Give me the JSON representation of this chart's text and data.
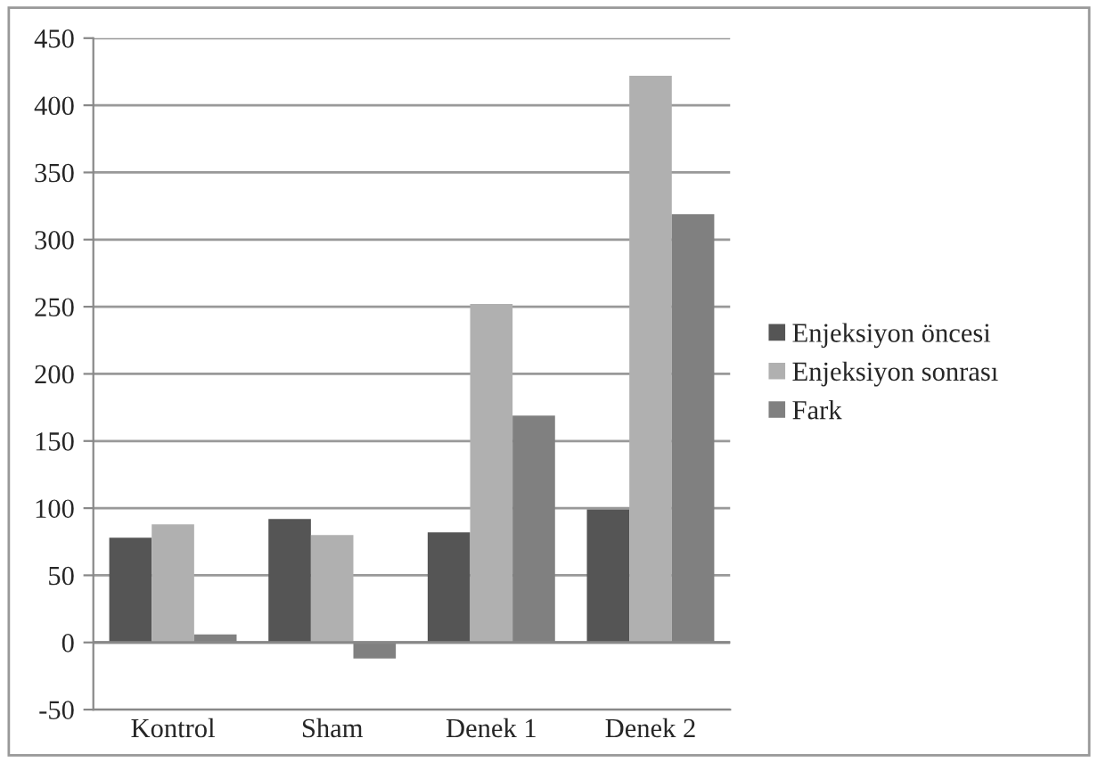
{
  "chart_data": {
    "type": "bar",
    "categories": [
      "Kontrol",
      "Sham",
      "Denek 1",
      "Denek 2"
    ],
    "series": [
      {
        "name": "Enjeksiyon öncesi",
        "color": "#555555",
        "values": [
          78,
          92,
          82,
          99
        ]
      },
      {
        "name": "Enjeksiyon sonrası",
        "color": "#b0b0b0",
        "values": [
          88,
          80,
          252,
          422
        ]
      },
      {
        "name": "Fark",
        "color": "#808080",
        "values": [
          6,
          -12,
          169,
          319
        ]
      }
    ],
    "ylim": [
      -50,
      450
    ],
    "yticks": [
      -50,
      0,
      50,
      100,
      150,
      200,
      250,
      300,
      350,
      400,
      450
    ],
    "grid": "y",
    "legend": "right"
  }
}
